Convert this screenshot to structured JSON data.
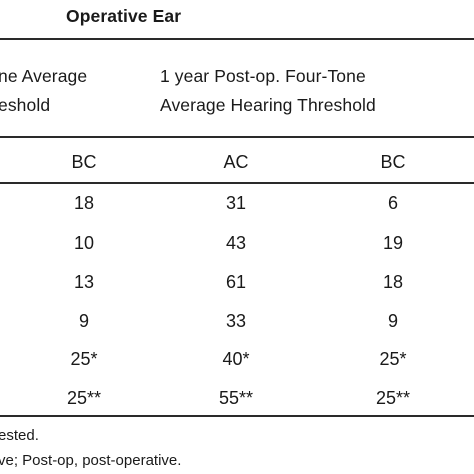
{
  "table": {
    "group_header": "Operative Ear",
    "col_header_left": {
      "line1": "ne Average",
      "line2": "eshold"
    },
    "col_header_right": {
      "line1": "1 year Post-op. Four-Tone",
      "line2": "Average Hearing Threshold"
    },
    "subheaders": [
      "BC",
      "AC",
      "BC"
    ],
    "rows": [
      [
        "18",
        "31",
        "6"
      ],
      [
        "10",
        "43",
        "19"
      ],
      [
        "13",
        "61",
        "18"
      ],
      [
        "9",
        "33",
        "9"
      ],
      [
        "25*",
        "40*",
        "25*"
      ],
      [
        "25**",
        "55**",
        "25**"
      ]
    ]
  },
  "footnotes": {
    "line1": "ested.",
    "line2": "ve; Post-op, post-operative."
  }
}
